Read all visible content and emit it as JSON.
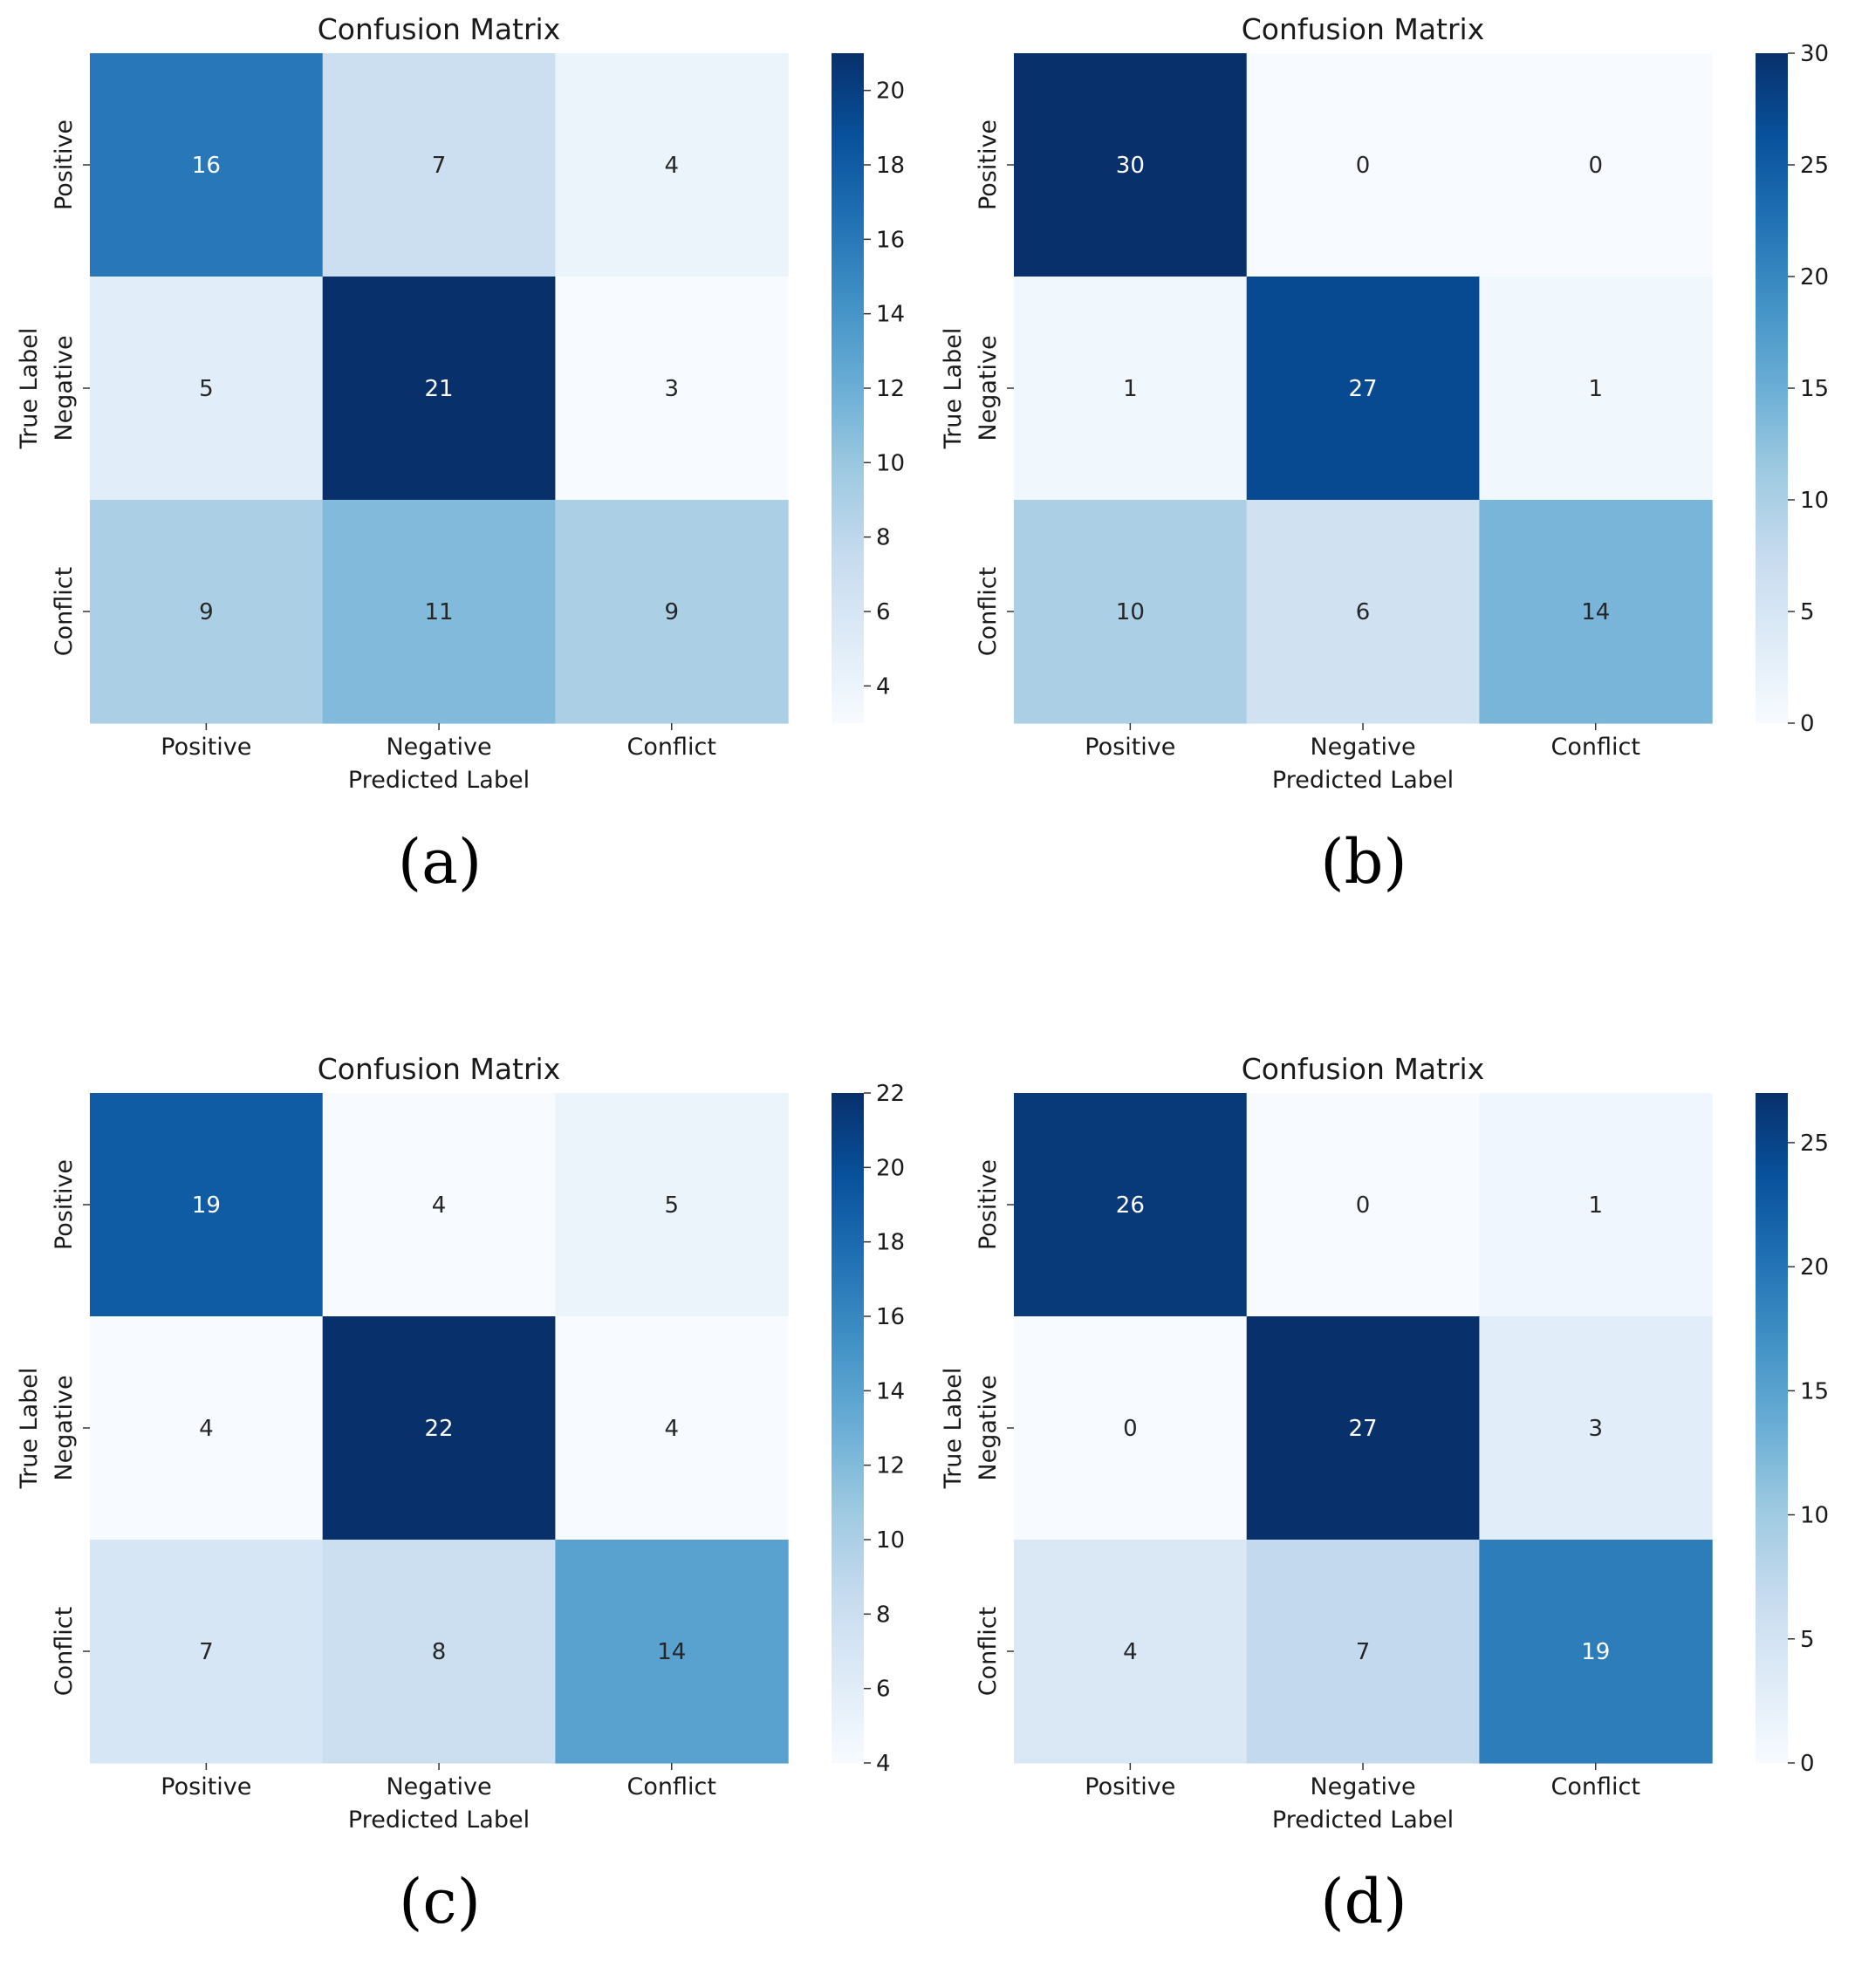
{
  "colors": {
    "cmap": [
      "#f7fbff",
      "#deebf7",
      "#c6dbef",
      "#9ecae1",
      "#6baed6",
      "#4292c6",
      "#2171b5",
      "#08519c",
      "#08306b"
    ],
    "text_dark": "#262626",
    "text_light": "#ffffff"
  },
  "chart_data": [
    {
      "type": "heatmap",
      "caption": "(a)",
      "title": "Confusion Matrix",
      "xlabel": "Predicted Label",
      "ylabel": "True Label",
      "x_categories": [
        "Positive",
        "Negative",
        "Conflict"
      ],
      "y_categories": [
        "Positive",
        "Negative",
        "Conflict"
      ],
      "matrix": [
        [
          16,
          7,
          4
        ],
        [
          5,
          21,
          3
        ],
        [
          9,
          11,
          9
        ]
      ],
      "colorbar": {
        "vmin": 3,
        "vmax": 21,
        "ticks": [
          4,
          6,
          8,
          10,
          12,
          14,
          16,
          18,
          20
        ]
      }
    },
    {
      "type": "heatmap",
      "caption": "(b)",
      "title": "Confusion Matrix",
      "xlabel": "Predicted Label",
      "ylabel": "True Label",
      "x_categories": [
        "Positive",
        "Negative",
        "Conflict"
      ],
      "y_categories": [
        "Positive",
        "Negative",
        "Conflict"
      ],
      "matrix": [
        [
          30,
          0,
          0
        ],
        [
          1,
          27,
          1
        ],
        [
          10,
          6,
          14
        ]
      ],
      "colorbar": {
        "vmin": 0,
        "vmax": 30,
        "ticks": [
          0,
          5,
          10,
          15,
          20,
          25,
          30
        ]
      }
    },
    {
      "type": "heatmap",
      "caption": "(c)",
      "title": "Confusion Matrix",
      "xlabel": "Predicted Label",
      "ylabel": "True Label",
      "x_categories": [
        "Positive",
        "Negative",
        "Conflict"
      ],
      "y_categories": [
        "Positive",
        "Negative",
        "Conflict"
      ],
      "matrix": [
        [
          19,
          4,
          5
        ],
        [
          4,
          22,
          4
        ],
        [
          7,
          8,
          14
        ]
      ],
      "colorbar": {
        "vmin": 4,
        "vmax": 22,
        "ticks": [
          4,
          6,
          8,
          10,
          12,
          14,
          16,
          18,
          20,
          22
        ]
      }
    },
    {
      "type": "heatmap",
      "caption": "(d)",
      "title": "Confusion Matrix",
      "xlabel": "Predicted Label",
      "ylabel": "True Label",
      "x_categories": [
        "Positive",
        "Negative",
        "Conflict"
      ],
      "y_categories": [
        "Positive",
        "Negative",
        "Conflict"
      ],
      "matrix": [
        [
          26,
          0,
          1
        ],
        [
          0,
          27,
          3
        ],
        [
          4,
          7,
          19
        ]
      ],
      "colorbar": {
        "vmin": 0,
        "vmax": 27,
        "ticks": [
          0,
          5,
          10,
          15,
          20,
          25
        ]
      }
    }
  ]
}
